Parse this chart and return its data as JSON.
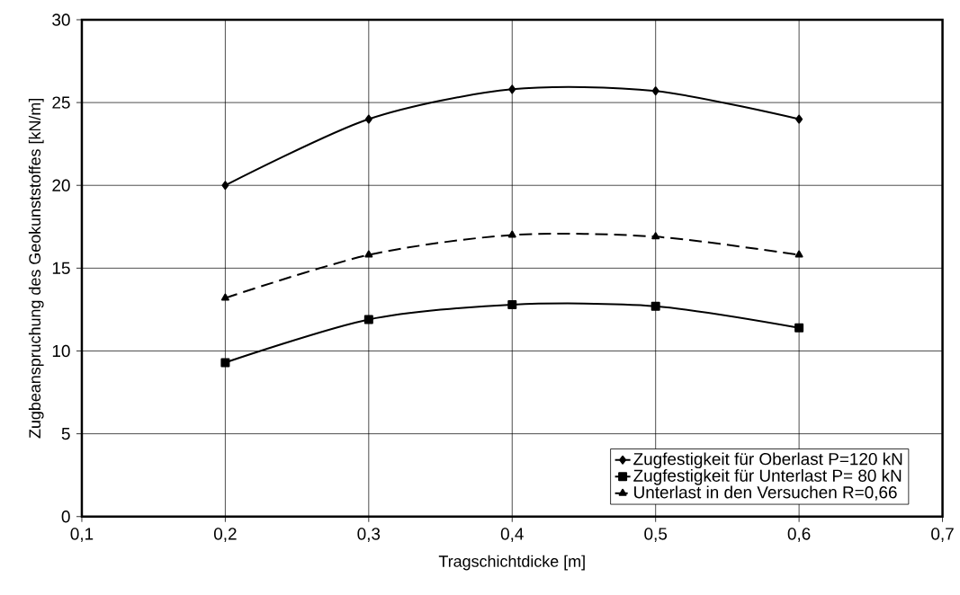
{
  "chart_data": {
    "type": "line",
    "xlabel": "Tragschichtdicke [m]",
    "ylabel": "Zugbeanspruchung des Geokunststoffes [kN/m]",
    "x": [
      0.2,
      0.3,
      0.4,
      0.5,
      0.6
    ],
    "series": [
      {
        "name": "Zugfestigkeit für Oberlast P=120 kN",
        "color": "#000000",
        "marker": "diamond",
        "line_style": "solid",
        "values": [
          20.0,
          24.0,
          25.8,
          25.7,
          24.0
        ]
      },
      {
        "name": "Zugfestigkeit für Unterlast P= 80 kN",
        "color": "#000000",
        "marker": "square",
        "line_style": "solid",
        "values": [
          9.3,
          11.9,
          12.8,
          12.7,
          11.4
        ]
      },
      {
        "name": "Unterlast in den Versuchen R=0,66",
        "color": "#000000",
        "marker": "triangle",
        "line_style": "dashed",
        "values": [
          13.2,
          15.8,
          17.0,
          16.9,
          15.8
        ]
      }
    ],
    "xlim": [
      0.1,
      0.7
    ],
    "xticks": [
      {
        "value": 0.1,
        "label": "0,1"
      },
      {
        "value": 0.2,
        "label": "0,2"
      },
      {
        "value": 0.3,
        "label": "0,3"
      },
      {
        "value": 0.4,
        "label": "0,4"
      },
      {
        "value": 0.5,
        "label": "0,5"
      },
      {
        "value": 0.6,
        "label": "0,6"
      },
      {
        "value": 0.7,
        "label": "0,7"
      }
    ],
    "ylim": [
      0,
      30
    ],
    "yticks": [
      0,
      5,
      10,
      15,
      20,
      25,
      30
    ],
    "grid": true,
    "legend": "bottom right"
  }
}
